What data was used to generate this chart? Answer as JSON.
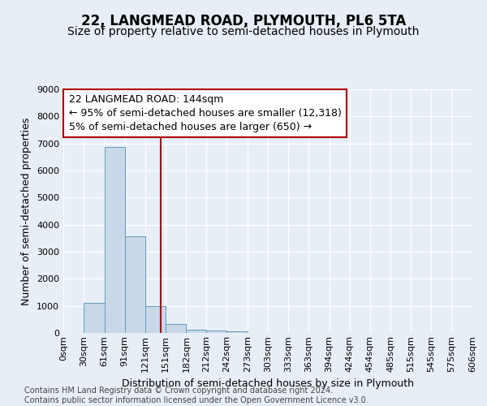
{
  "title": "22, LANGMEAD ROAD, PLYMOUTH, PL6 5TA",
  "subtitle": "Size of property relative to semi-detached houses in Plymouth",
  "xlabel": "Distribution of semi-detached houses by size in Plymouth",
  "ylabel": "Number of semi-detached properties",
  "bar_edges": [
    0,
    30,
    61,
    91,
    121,
    151,
    182,
    212,
    242,
    273,
    303,
    333,
    363,
    394,
    424,
    454,
    485,
    515,
    545,
    575,
    606
  ],
  "bar_heights": [
    0,
    1120,
    6880,
    3560,
    1000,
    330,
    130,
    100,
    75,
    0,
    0,
    0,
    0,
    0,
    0,
    0,
    0,
    0,
    0,
    0
  ],
  "bar_color": "#c8d8e8",
  "bar_edge_color": "#6699bb",
  "vline_x": 144,
  "vline_color": "#aa0000",
  "annotation_line1": "22 LANGMEAD ROAD: 144sqm",
  "annotation_line2": "← 95% of semi-detached houses are smaller (12,318)",
  "annotation_line3": "5% of semi-detached houses are larger (650) →",
  "annotation_box_color": "#ffffff",
  "annotation_box_edge": "#aa0000",
  "ylim": [
    0,
    9000
  ],
  "yticks": [
    0,
    1000,
    2000,
    3000,
    4000,
    5000,
    6000,
    7000,
    8000,
    9000
  ],
  "footer_line1": "Contains HM Land Registry data © Crown copyright and database right 2024.",
  "footer_line2": "Contains public sector information licensed under the Open Government Licence v3.0.",
  "bg_color": "#e8eef5",
  "plot_bg_color": "#e8eef5",
  "grid_color": "#ffffff",
  "title_fontsize": 12,
  "subtitle_fontsize": 10,
  "axis_label_fontsize": 9,
  "tick_fontsize": 8,
  "annotation_fontsize": 9,
  "footer_fontsize": 7
}
